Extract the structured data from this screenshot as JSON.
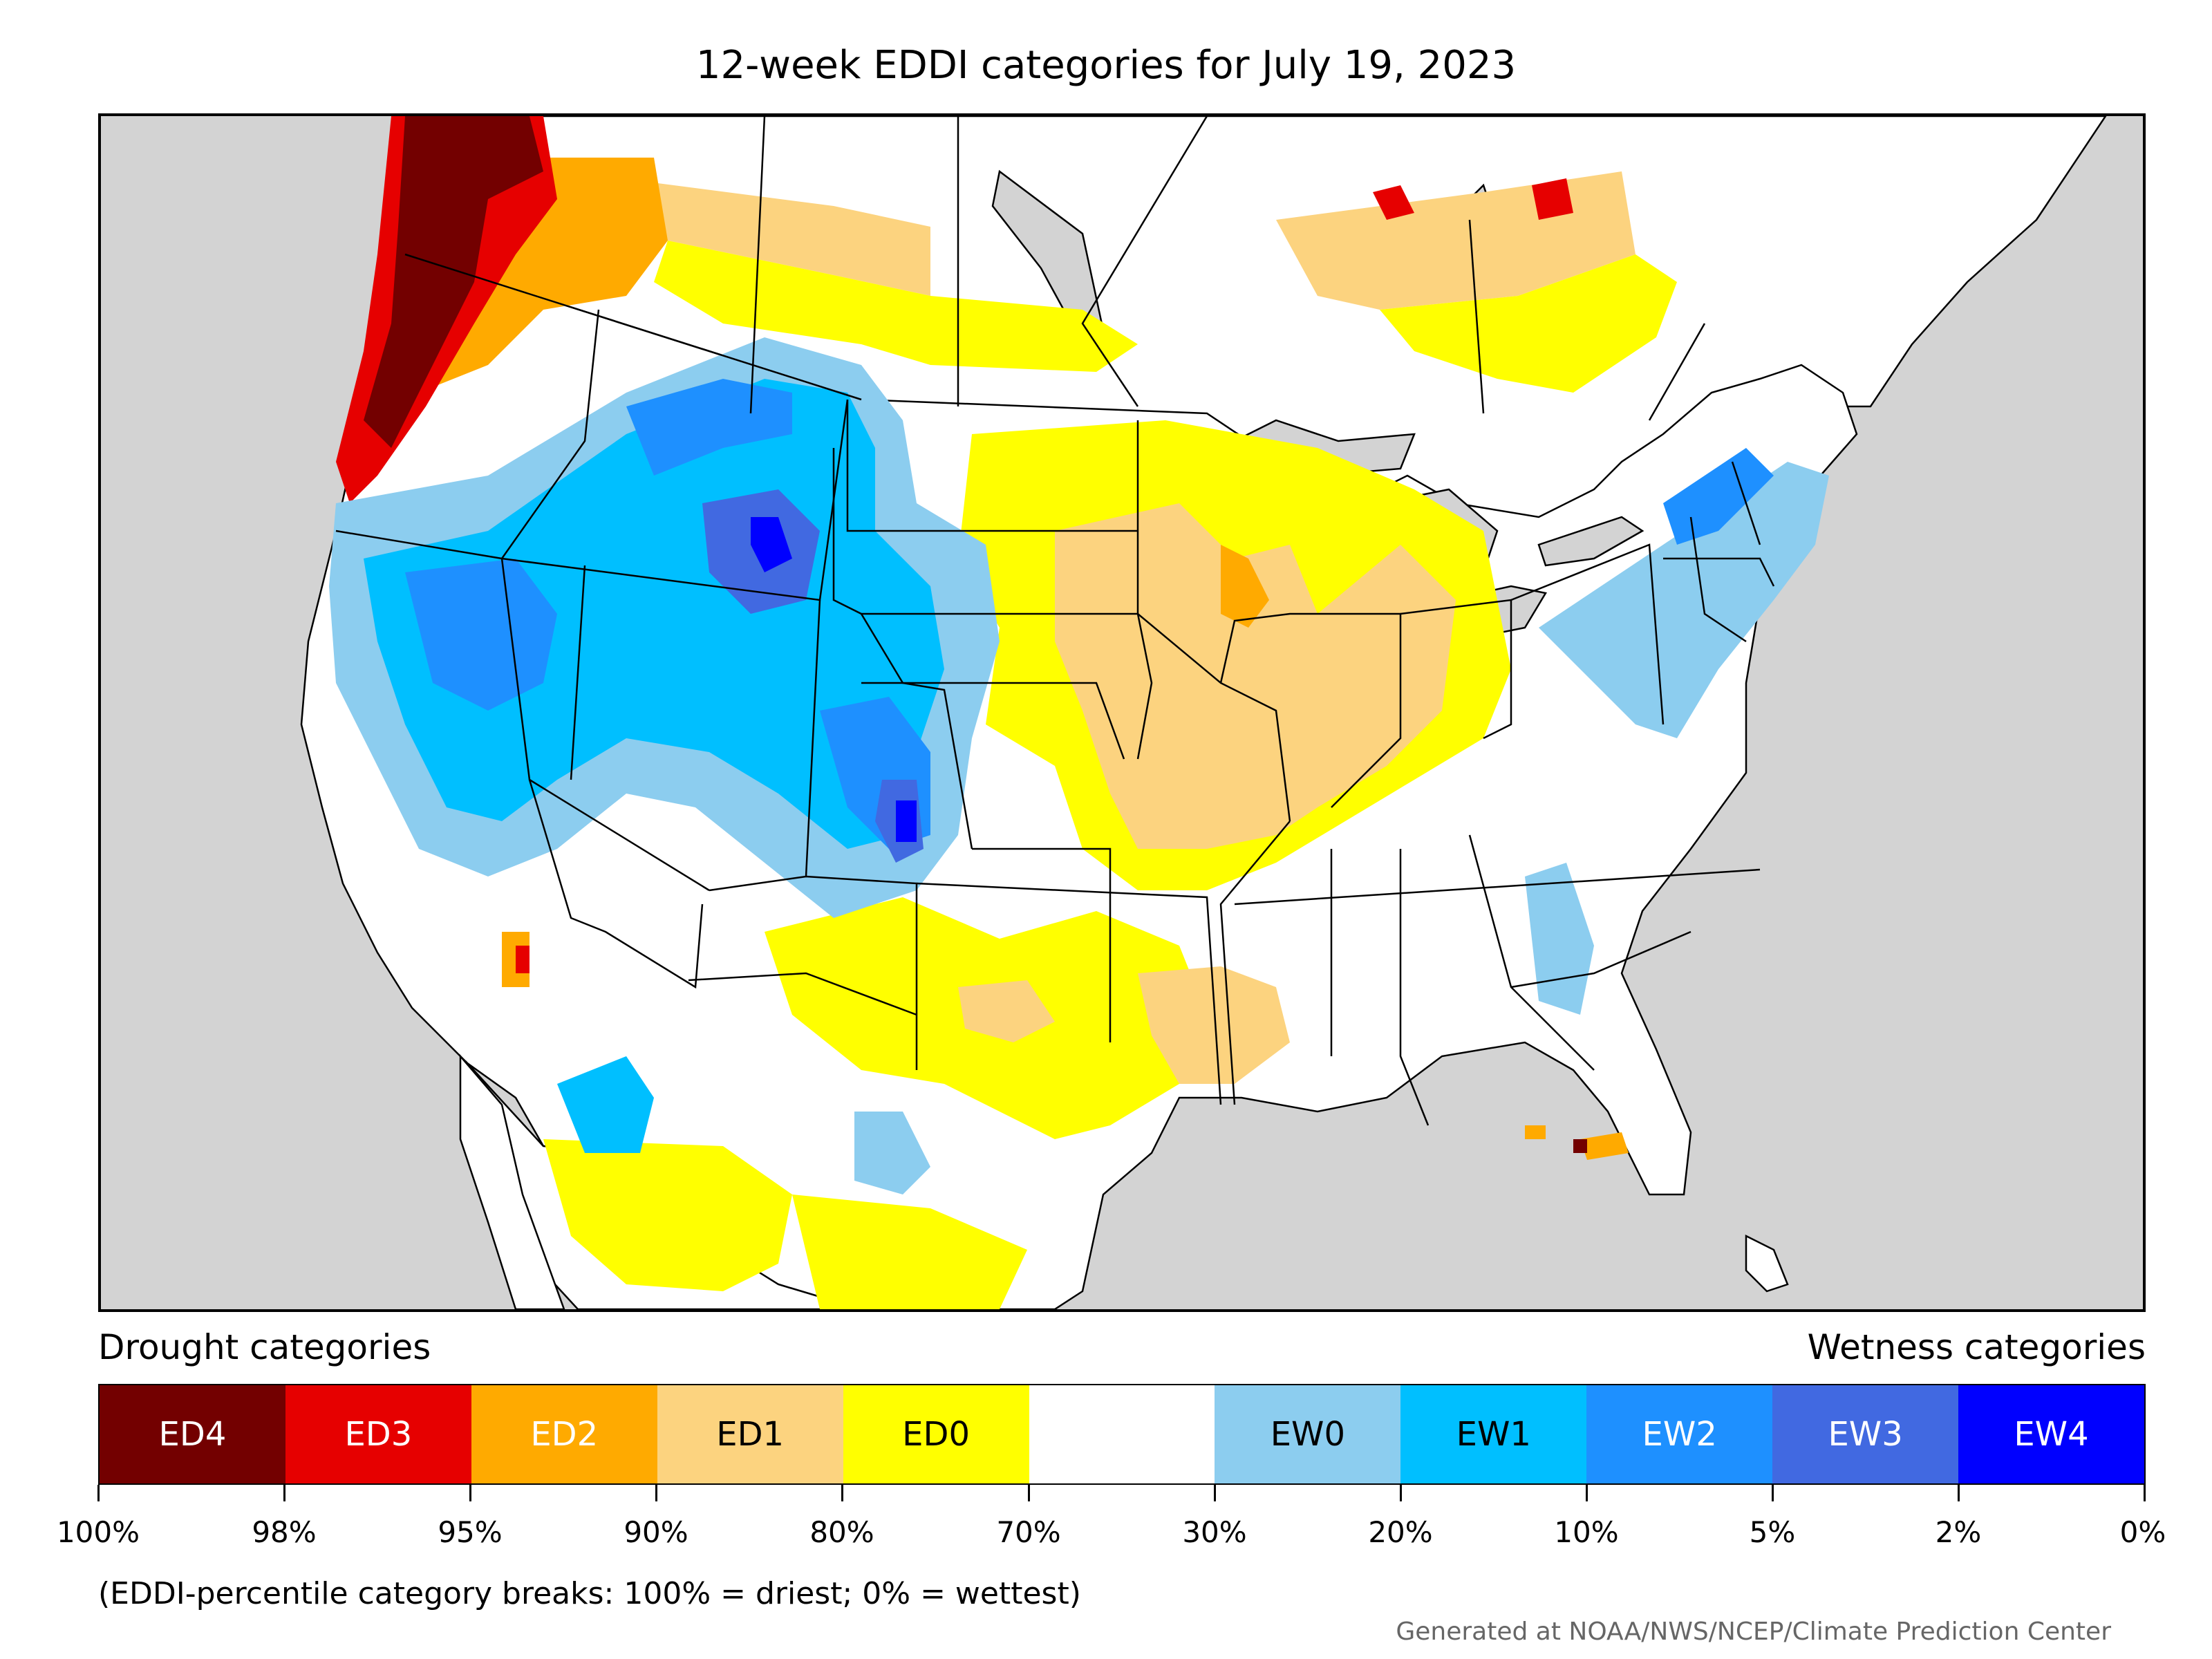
{
  "title": "12-week EDDI categories for July 19, 2023",
  "legend": {
    "drought_heading": "Drought categories",
    "wetness_heading": "Wetness categories",
    "categories": [
      {
        "label": "ED4",
        "color": "#730000",
        "text_color": "#ffffff"
      },
      {
        "label": "ED3",
        "color": "#e60000",
        "text_color": "#ffffff"
      },
      {
        "label": "ED2",
        "color": "#ffaa00",
        "text_color": "#ffffff"
      },
      {
        "label": "ED1",
        "color": "#fcd37f",
        "text_color": "#000000"
      },
      {
        "label": "ED0",
        "color": "#ffff00",
        "text_color": "#000000"
      },
      {
        "label": "",
        "color": "#ffffff",
        "text_color": "#000000"
      },
      {
        "label": "EW0",
        "color": "#8ccdef",
        "text_color": "#000000"
      },
      {
        "label": "EW1",
        "color": "#00bfff",
        "text_color": "#000000"
      },
      {
        "label": "EW2",
        "color": "#1e90ff",
        "text_color": "#ffffff"
      },
      {
        "label": "EW3",
        "color": "#4169e1",
        "text_color": "#ffffff"
      },
      {
        "label": "EW4",
        "color": "#0000ff",
        "text_color": "#ffffff"
      }
    ],
    "breaks": [
      "100%",
      "98%",
      "95%",
      "90%",
      "80%",
      "70%",
      "30%",
      "20%",
      "10%",
      "5%",
      "2%",
      "0%"
    ]
  },
  "footnote": "(EDDI-percentile category breaks: 100% = driest; 0% = wettest)",
  "credit": "Generated at NOAA/NWS/NCEP/Climate Prediction Center",
  "colors": {
    "ocean": "#d3d3d3",
    "land": "#ffffff",
    "boundary": "#000000"
  }
}
